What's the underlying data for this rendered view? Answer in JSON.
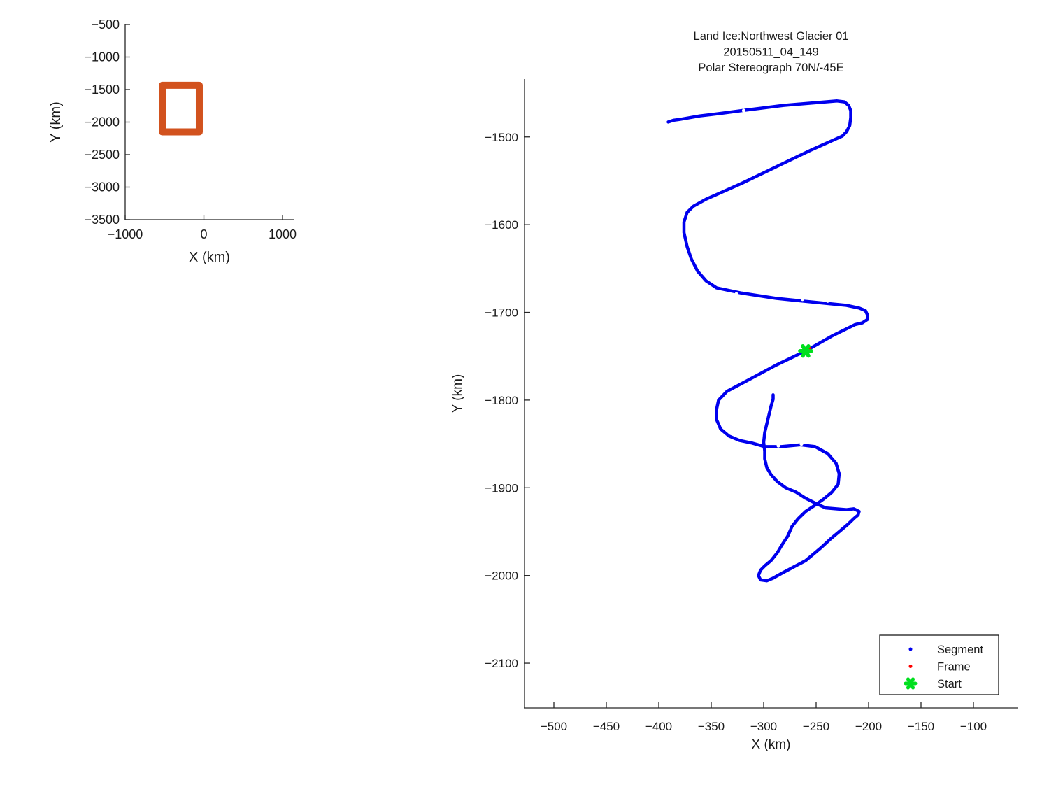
{
  "figure_background": "#ffffff",
  "colors": {
    "track_blue": "#0000EE",
    "frame_red": "#FF0000",
    "start_green": "#00DF1E",
    "extent_orange": "#D2521E",
    "axis_ink": "#262626",
    "text_ink": "#1a1a1a"
  },
  "chart_data": [
    {
      "id": "overview",
      "type": "line",
      "title": "",
      "xlabel": "X (km)",
      "ylabel": "Y (km)",
      "xlim": [
        -1000,
        1142
      ],
      "ylim": [
        -3500,
        -500
      ],
      "xticks": [
        -1000,
        0,
        1000
      ],
      "yticks": [
        -500,
        -1000,
        -1500,
        -2000,
        -2500,
        -3000,
        -3500
      ],
      "grid": false,
      "legend": null,
      "series": [
        {
          "name": "coverage-extent-rect",
          "kind": "rect",
          "rect_x": [
            -528,
            -58
          ],
          "rect_y": [
            -2151,
            -1434
          ],
          "color": "#D2521E",
          "linewidth": 10
        }
      ]
    },
    {
      "id": "track",
      "type": "line",
      "title_lines": [
        "Land Ice:Northwest Glacier 01",
        "20150511_04_149",
        "Polar Stereograph 70N/-45E"
      ],
      "xlabel": "X (km)",
      "ylabel": "Y (km)",
      "xlim": [
        -528,
        -58
      ],
      "ylim": [
        -2151,
        -1434
      ],
      "xticks": [
        -500,
        -450,
        -400,
        -350,
        -300,
        -250,
        -200,
        -150,
        -100
      ],
      "yticks": [
        -1500,
        -1600,
        -1700,
        -1800,
        -1900,
        -2000,
        -2100
      ],
      "grid": false,
      "legend": {
        "position": "southeast",
        "entries": [
          {
            "label": "Segment",
            "marker": "dot",
            "color": "#0000EE"
          },
          {
            "label": "Frame",
            "marker": "dot",
            "color": "#FF0000"
          },
          {
            "label": "Start",
            "marker": "asterisk",
            "color": "#00DF1E"
          }
        ]
      },
      "series": [
        {
          "name": "Segment",
          "kind": "path",
          "color": "#0000EE",
          "linewidth": 4.5,
          "points": [
            [
              -391,
              -1483
            ],
            [
              -386,
              -1481
            ],
            [
              -380,
              -1480
            ],
            [
              -361,
              -1476
            ],
            [
              -340,
              -1473
            ],
            [
              -321,
              -1470
            ],
            [
              -301,
              -1467
            ],
            [
              -281,
              -1464
            ],
            [
              -261,
              -1462
            ],
            [
              -241,
              -1460
            ],
            [
              -230,
              -1459
            ],
            [
              -223,
              -1460
            ],
            [
              -219,
              -1464
            ],
            [
              -217,
              -1470
            ],
            [
              -217,
              -1478
            ],
            [
              -218,
              -1487
            ],
            [
              -221,
              -1494
            ],
            [
              -225,
              -1499
            ],
            [
              -255,
              -1515
            ],
            [
              -288,
              -1534
            ],
            [
              -321,
              -1553
            ],
            [
              -355,
              -1571
            ],
            [
              -367,
              -1579
            ],
            [
              -373,
              -1586
            ],
            [
              -376,
              -1597
            ],
            [
              -376,
              -1609
            ],
            [
              -373,
              -1625
            ],
            [
              -369,
              -1639
            ],
            [
              -363,
              -1653
            ],
            [
              -355,
              -1664
            ],
            [
              -345,
              -1672
            ],
            [
              -321,
              -1678
            ],
            [
              -288,
              -1684
            ],
            [
              -255,
              -1688
            ],
            [
              -221,
              -1692
            ],
            [
              -209,
              -1695
            ],
            [
              -203,
              -1698
            ],
            [
              -201,
              -1703
            ],
            [
              -201,
              -1708
            ],
            [
              -206,
              -1712
            ],
            [
              -213,
              -1714
            ],
            [
              -235,
              -1727
            ],
            [
              -260,
              -1744
            ],
            [
              -288,
              -1760
            ],
            [
              -316,
              -1778
            ],
            [
              -335,
              -1790
            ],
            [
              -343,
              -1800
            ],
            [
              -345,
              -1811
            ],
            [
              -345,
              -1822
            ],
            [
              -341,
              -1833
            ],
            [
              -333,
              -1841
            ],
            [
              -323,
              -1846
            ],
            [
              -311,
              -1849
            ],
            [
              -299,
              -1853
            ],
            [
              -283,
              -1853
            ],
            [
              -265,
              -1851
            ],
            [
              -251,
              -1853
            ],
            [
              -239,
              -1861
            ],
            [
              -231,
              -1872
            ],
            [
              -228,
              -1884
            ],
            [
              -229,
              -1896
            ],
            [
              -235,
              -1905
            ],
            [
              -243,
              -1913
            ],
            [
              -250,
              -1919
            ],
            [
              -260,
              -1927
            ],
            [
              -267,
              -1935
            ],
            [
              -273,
              -1944
            ],
            [
              -277,
              -1955
            ],
            [
              -283,
              -1966
            ],
            [
              -287,
              -1974
            ],
            [
              -293,
              -1983
            ],
            [
              -299,
              -1989
            ],
            [
              -303,
              -1994
            ],
            [
              -305,
              -2000
            ],
            [
              -303,
              -2005
            ],
            [
              -297,
              -2006
            ],
            [
              -291,
              -2003
            ],
            [
              -282,
              -1997
            ],
            [
              -271,
              -1990
            ],
            [
              -260,
              -1983
            ],
            [
              -253,
              -1976
            ],
            [
              -245,
              -1968
            ],
            [
              -236,
              -1958
            ],
            [
              -228,
              -1950
            ],
            [
              -220,
              -1942
            ],
            [
              -214,
              -1935
            ],
            [
              -210,
              -1931
            ],
            [
              -209,
              -1927
            ],
            [
              -214,
              -1924
            ],
            [
              -221,
              -1925
            ],
            [
              -231,
              -1924
            ],
            [
              -241,
              -1923
            ],
            [
              -250,
              -1918
            ],
            [
              -260,
              -1912
            ],
            [
              -269,
              -1905
            ],
            [
              -279,
              -1900
            ],
            [
              -287,
              -1893
            ],
            [
              -293,
              -1885
            ],
            [
              -297,
              -1877
            ],
            [
              -299,
              -1867
            ],
            [
              -299,
              -1858
            ],
            [
              -300,
              -1848
            ],
            [
              -299,
              -1837
            ],
            [
              -297,
              -1827
            ],
            [
              -295,
              -1817
            ],
            [
              -293,
              -1807
            ],
            [
              -291,
              -1799
            ],
            [
              -291,
              -1794
            ]
          ],
          "dash_gaps": [
            [
              -319,
              -1470
            ],
            [
              -326,
              -1679
            ],
            [
              -263,
              -1685
            ],
            [
              -239,
              -1687
            ],
            [
              -286,
              -1852
            ],
            [
              -264,
              -1850
            ]
          ]
        },
        {
          "name": "Frame",
          "kind": "dots",
          "color": "#FF0000",
          "points": [
            [
              -256,
              -1741
            ]
          ]
        },
        {
          "name": "Start",
          "kind": "asterisk",
          "color": "#00DF1E",
          "points": [
            [
              -260,
              -1744
            ]
          ]
        }
      ]
    }
  ]
}
